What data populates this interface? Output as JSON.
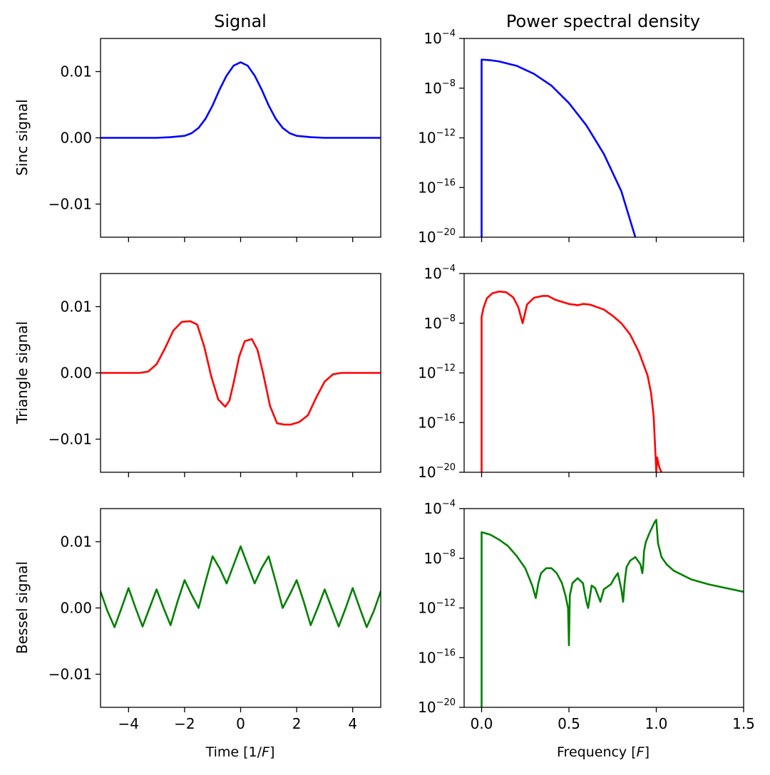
{
  "figure": {
    "column_titles": [
      "Signal",
      "Power spectral density"
    ],
    "row_labels": [
      "Sinc signal",
      "Triangle signal",
      "Bessel signal"
    ],
    "left_xlabel": {
      "text": "Time [1/",
      "italic": "F",
      "close": "]"
    },
    "right_xlabel": {
      "text": "Frequency [",
      "italic": "F",
      "close": "]"
    }
  },
  "chart_data": [
    {
      "type": "line",
      "name": "sinc-signal",
      "title": "Signal",
      "ylabel": "Sinc signal",
      "color": "#0000ff",
      "xlim": [
        -5,
        5
      ],
      "ylim": [
        -0.015,
        0.015
      ],
      "xticks": [
        -4,
        -2,
        0,
        2,
        4
      ],
      "yticks": [
        0.01,
        0.0,
        -0.01
      ],
      "ytick_labels": [
        "0.01",
        "0.00",
        "−0.01"
      ],
      "x": [
        -5,
        -3,
        -2.5,
        -2,
        -1.75,
        -1.5,
        -1.25,
        -1,
        -0.75,
        -0.5,
        -0.25,
        0,
        0.25,
        0.5,
        0.75,
        1,
        1.25,
        1.5,
        1.75,
        2,
        2.5,
        3,
        5
      ],
      "y": [
        0,
        0,
        0.0001,
        0.0003,
        0.0007,
        0.0015,
        0.0029,
        0.0049,
        0.0073,
        0.0094,
        0.0109,
        0.0114,
        0.0109,
        0.0094,
        0.0073,
        0.0049,
        0.0029,
        0.0015,
        0.0007,
        0.0003,
        0.0001,
        0,
        0
      ]
    },
    {
      "type": "line",
      "name": "sinc-psd",
      "title": "Power spectral density",
      "color": "#0000ff",
      "xlim": [
        -0.1,
        1.5
      ],
      "ylim": [
        -20,
        -4
      ],
      "yscale": "log",
      "xticks": [
        0.0,
        0.5,
        1.0,
        1.5
      ],
      "yticks": [
        -4,
        -8,
        -12,
        -16,
        -20
      ],
      "x": [
        0.0,
        0.0,
        0.05,
        0.1,
        0.2,
        0.3,
        0.4,
        0.5,
        0.6,
        0.7,
        0.8,
        0.88
      ],
      "y": [
        -20,
        -5.7,
        -5.75,
        -5.85,
        -6.2,
        -6.85,
        -7.8,
        -9.2,
        -11.0,
        -13.3,
        -16.3,
        -20
      ]
    },
    {
      "type": "line",
      "name": "triangle-signal",
      "ylabel": "Triangle signal",
      "color": "#ff0000",
      "xlim": [
        -5,
        5
      ],
      "ylim": [
        -0.015,
        0.015
      ],
      "xticks": [
        -4,
        -2,
        0,
        2,
        4
      ],
      "yticks": [
        0.01,
        0.0,
        -0.01
      ],
      "ytick_labels": [
        "0.01",
        "0.00",
        "−0.01"
      ],
      "x": [
        -5,
        -3.6,
        -3.3,
        -3,
        -2.7,
        -2.4,
        -2.1,
        -1.8,
        -1.55,
        -1.3,
        -1.05,
        -0.8,
        -0.55,
        -0.4,
        -0.25,
        -0.05,
        0.15,
        0.4,
        0.6,
        0.8,
        1.05,
        1.3,
        1.55,
        1.8,
        2.1,
        2.4,
        2.7,
        3,
        3.3,
        3.6,
        5
      ],
      "y": [
        0,
        0,
        0.0002,
        0.0013,
        0.0037,
        0.0064,
        0.0077,
        0.0078,
        0.0073,
        0.004,
        -0.0005,
        -0.004,
        -0.0051,
        -0.0042,
        -0.0015,
        0.0025,
        0.0048,
        0.0051,
        0.0035,
        0.0,
        -0.005,
        -0.0076,
        -0.0078,
        -0.0078,
        -0.0074,
        -0.0064,
        -0.0037,
        -0.0013,
        -0.0002,
        0,
        0
      ]
    },
    {
      "type": "line",
      "name": "triangle-psd",
      "color": "#ff0000",
      "xlim": [
        -0.1,
        1.5
      ],
      "ylim": [
        -20,
        -4
      ],
      "yscale": "log",
      "xticks": [
        0.0,
        0.5,
        1.0,
        1.5
      ],
      "yticks": [
        -4,
        -8,
        -12,
        -16,
        -20
      ],
      "x": [
        0.0,
        0.0,
        0.01,
        0.03,
        0.06,
        0.1,
        0.14,
        0.18,
        0.21,
        0.225,
        0.235,
        0.245,
        0.26,
        0.3,
        0.35,
        0.38,
        0.42,
        0.5,
        0.55,
        0.58,
        0.62,
        0.7,
        0.75,
        0.8,
        0.85,
        0.9,
        0.95,
        0.97,
        0.985,
        0.99,
        0.998,
        1.0,
        1.005,
        1.012,
        1.02,
        1.03
      ],
      "y": [
        -20,
        -7.5,
        -6.8,
        -6.0,
        -5.6,
        -5.45,
        -5.5,
        -5.9,
        -6.7,
        -7.5,
        -8.0,
        -7.4,
        -6.5,
        -5.95,
        -5.8,
        -5.8,
        -6.1,
        -6.45,
        -6.55,
        -6.45,
        -6.5,
        -6.9,
        -7.4,
        -8.0,
        -8.9,
        -10.3,
        -12.2,
        -13.6,
        -15.5,
        -17.0,
        -19.3,
        -20,
        -18.8,
        -19.3,
        -19.7,
        -20
      ]
    },
    {
      "type": "line",
      "name": "bessel-signal",
      "ylabel": "Bessel signal",
      "color": "#008000",
      "xlim": [
        -5,
        5
      ],
      "ylim": [
        -0.015,
        0.015
      ],
      "xticks": [
        -4,
        -2,
        0,
        2,
        4
      ],
      "yticks": [
        0.01,
        0.0,
        -0.01
      ],
      "ytick_labels": [
        "0.01",
        "0.00",
        "−0.01"
      ],
      "x": [
        -5,
        -4.75,
        -4.5,
        -4.25,
        -4,
        -3.75,
        -3.5,
        -3.25,
        -3,
        -2.75,
        -2.5,
        -2.25,
        -2,
        -1.75,
        -1.5,
        -1.25,
        -1,
        -0.75,
        -0.5,
        -0.25,
        0,
        0.25,
        0.5,
        0.75,
        1,
        1.25,
        1.5,
        1.75,
        2,
        2.25,
        2.5,
        2.75,
        3,
        3.25,
        3.5,
        3.75,
        4,
        4.25,
        4.5,
        4.75,
        5
      ],
      "y": [
        0.0025,
        -0.0005,
        -0.0029,
        0.0,
        0.003,
        0.0,
        -0.0028,
        0.0,
        0.0028,
        0.0,
        -0.0026,
        0.001,
        0.0042,
        0.002,
        0.0,
        0.004,
        0.0078,
        0.006,
        0.0037,
        0.0065,
        0.0093,
        0.0065,
        0.0037,
        0.006,
        0.0078,
        0.004,
        0.0,
        0.002,
        0.0042,
        0.001,
        -0.0026,
        0.0,
        0.0028,
        0.0,
        -0.0028,
        0.0,
        0.003,
        0.0,
        -0.0029,
        -0.0005,
        0.0025
      ]
    },
    {
      "type": "line",
      "name": "bessel-psd",
      "color": "#008000",
      "xlim": [
        -0.1,
        1.5
      ],
      "ylim": [
        -20,
        -4
      ],
      "yscale": "log",
      "xticks": [
        0.0,
        0.5,
        1.0,
        1.5
      ],
      "yticks": [
        -4,
        -8,
        -12,
        -16,
        -20
      ],
      "x": [
        0.0,
        0.0,
        0.05,
        0.1,
        0.15,
        0.2,
        0.25,
        0.29,
        0.31,
        0.325,
        0.34,
        0.37,
        0.4,
        0.43,
        0.46,
        0.48,
        0.495,
        0.5,
        0.505,
        0.52,
        0.55,
        0.58,
        0.6,
        0.61,
        0.63,
        0.65,
        0.68,
        0.7,
        0.72,
        0.74,
        0.76,
        0.78,
        0.8,
        0.81,
        0.82,
        0.83,
        0.85,
        0.88,
        0.91,
        0.92,
        0.925,
        0.93,
        0.94,
        0.96,
        0.98,
        0.99,
        1.0,
        1.01,
        1.03,
        1.06,
        1.1,
        1.2,
        1.3,
        1.4,
        1.5
      ],
      "y": [
        -20,
        -5.9,
        -6.1,
        -6.5,
        -7.0,
        -7.8,
        -8.8,
        -10.2,
        -11.2,
        -10.0,
        -9.2,
        -8.8,
        -8.8,
        -9.2,
        -10.0,
        -11.0,
        -12.0,
        -15.0,
        -11.0,
        -10.0,
        -9.6,
        -10.0,
        -11.5,
        -12.0,
        -10.2,
        -10.4,
        -11.5,
        -10.5,
        -10.3,
        -10.1,
        -9.6,
        -9.2,
        -10.5,
        -11.5,
        -9.8,
        -8.7,
        -8.2,
        -7.9,
        -8.5,
        -9.2,
        -8.6,
        -7.4,
        -6.7,
        -6.0,
        -5.4,
        -5.1,
        -4.9,
        -6.8,
        -7.9,
        -8.5,
        -9.0,
        -9.7,
        -10.1,
        -10.4,
        -10.7
      ]
    }
  ]
}
